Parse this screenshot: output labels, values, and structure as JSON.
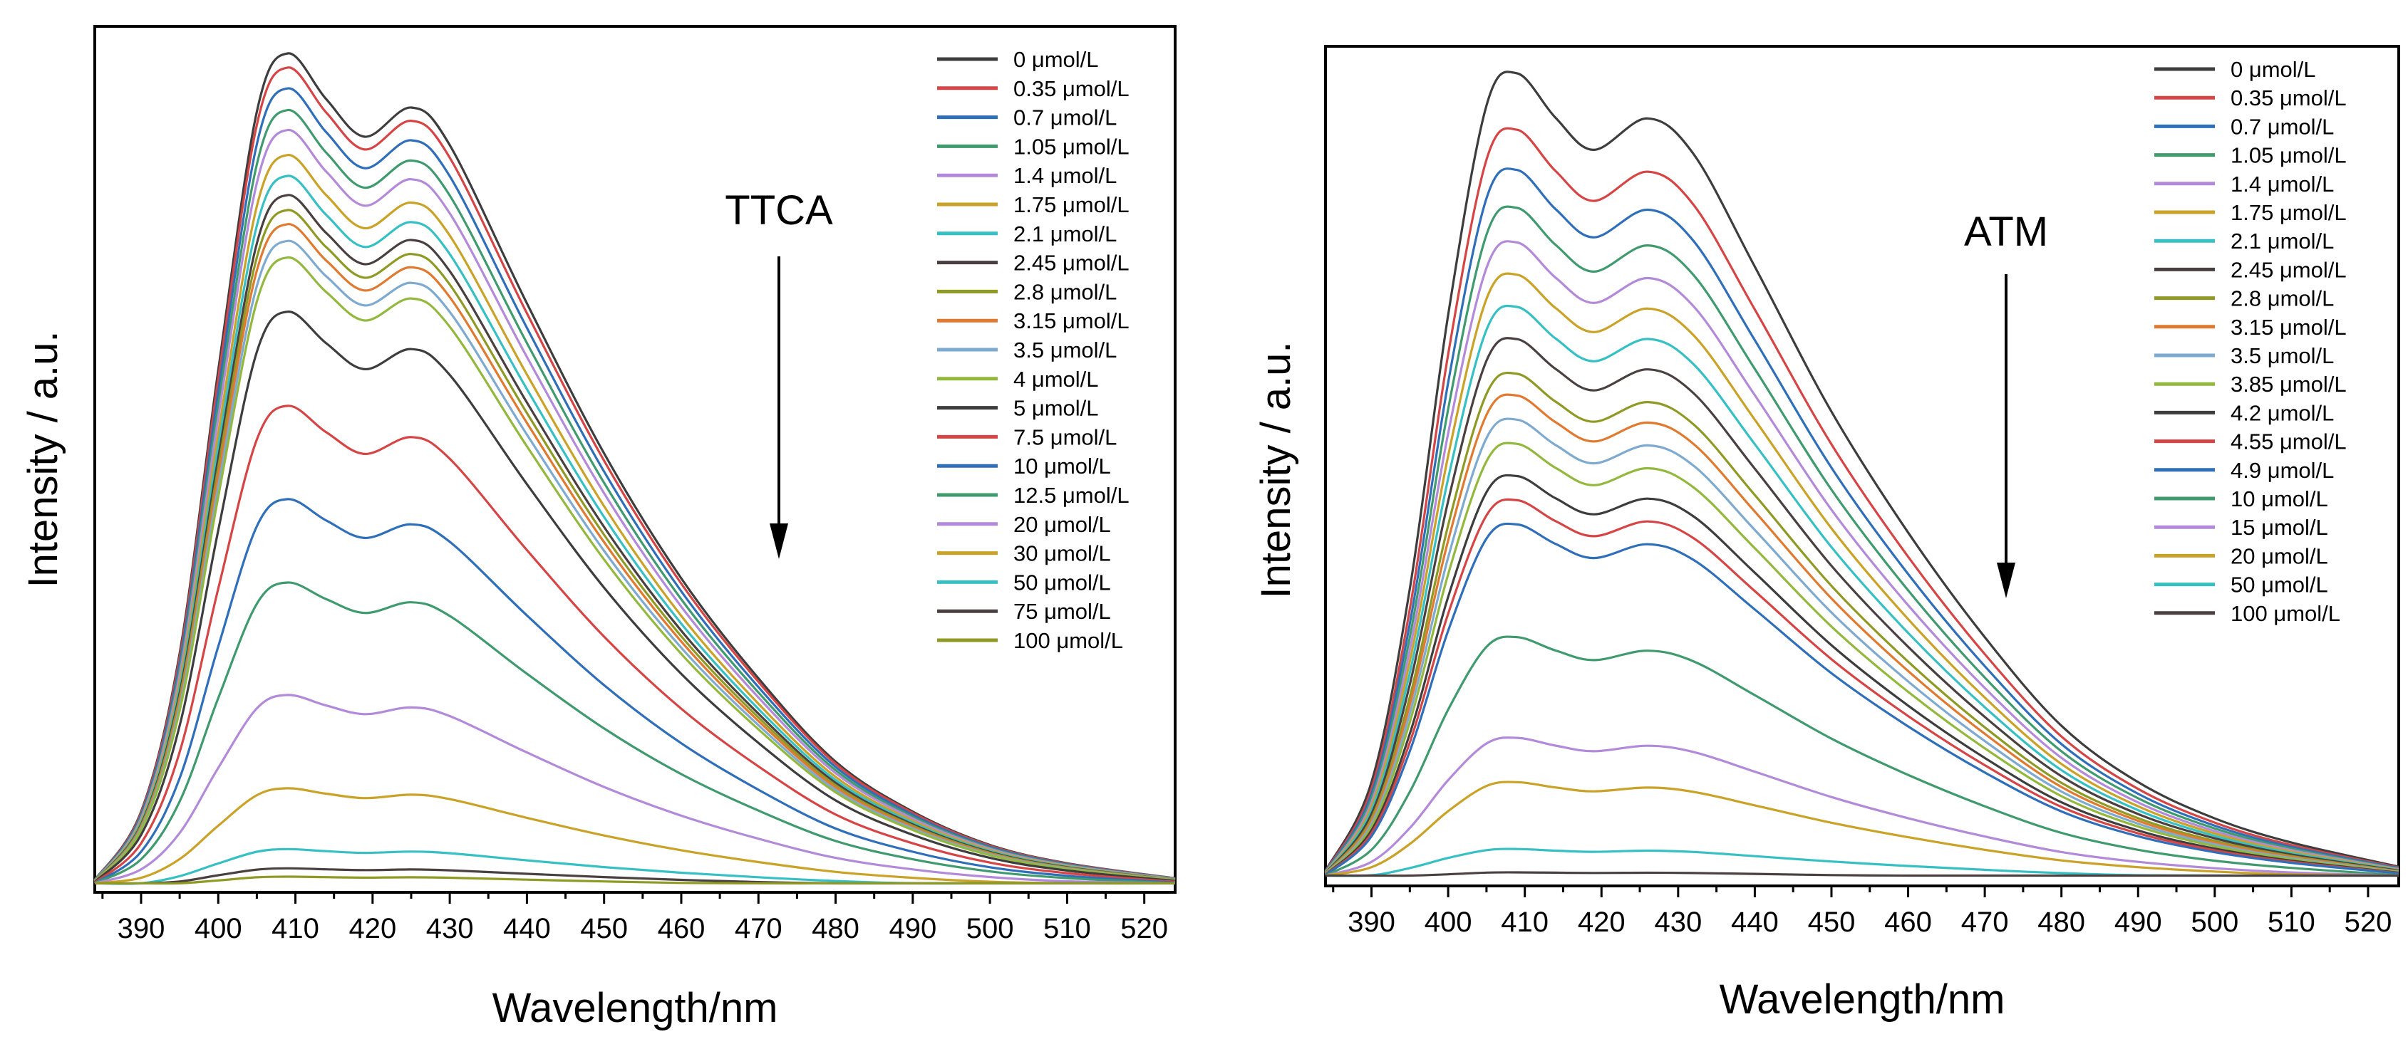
{
  "palette": [
    "#3d3d3d",
    "#d64545",
    "#2f6fba",
    "#3f9a6e",
    "#b38ad9",
    "#c9a227",
    "#37c0c4",
    "#4a4040",
    "#8f9a25",
    "#e07a30",
    "#7faad0",
    "#93b83e"
  ],
  "chart_data": [
    {
      "type": "line",
      "title": "",
      "xlabel": "Wavelength/nm",
      "ylabel": "Intensity / a.u.",
      "xlim": [
        384,
        524
      ],
      "xticks": [
        390,
        400,
        410,
        420,
        430,
        440,
        450,
        460,
        470,
        480,
        490,
        500,
        510,
        520
      ],
      "annotation": "TTCA",
      "legend_position": "top-right",
      "grid": false,
      "x": [
        384,
        390,
        395,
        400,
        405,
        409,
        414,
        419,
        425,
        430,
        440,
        450,
        460,
        470,
        480,
        490,
        500,
        510,
        524
      ],
      "shape": [
        0.008,
        0.09,
        0.28,
        0.62,
        0.93,
        1.0,
        0.945,
        0.9,
        0.935,
        0.89,
        0.7,
        0.52,
        0.37,
        0.25,
        0.15,
        0.09,
        0.05,
        0.028,
        0.01
      ],
      "series": [
        {
          "name": "0 μmol/L",
          "peak": 1.0,
          "color": "#3d3d3d"
        },
        {
          "name": "0.35 μmol/L",
          "peak": 0.983,
          "color": "#d64545"
        },
        {
          "name": "0.7 μmol/L",
          "peak": 0.958,
          "color": "#2f6fba"
        },
        {
          "name": "1.05 μmol/L",
          "peak": 0.932,
          "color": "#3f9a6e"
        },
        {
          "name": "1.4 μmol/L",
          "peak": 0.908,
          "color": "#b38ad9"
        },
        {
          "name": "1.75 μmol/L",
          "peak": 0.878,
          "color": "#c9a227"
        },
        {
          "name": "2.1 μmol/L",
          "peak": 0.853,
          "color": "#37c0c4"
        },
        {
          "name": "2.45 μmol/L",
          "peak": 0.83,
          "color": "#4a4040"
        },
        {
          "name": "2.8 μmol/L",
          "peak": 0.812,
          "color": "#8f9a25"
        },
        {
          "name": "3.15 μmol/L",
          "peak": 0.795,
          "color": "#e07a30"
        },
        {
          "name": "3.5 μmol/L",
          "peak": 0.775,
          "color": "#7faad0"
        },
        {
          "name": "4 μmol/L",
          "peak": 0.755,
          "color": "#93b83e"
        },
        {
          "name": "5 μmol/L",
          "peak": 0.69,
          "color": "#3d3d3d"
        },
        {
          "name": "7.5 μmol/L",
          "peak": 0.577,
          "color": "#d64545"
        },
        {
          "name": "10 μmol/L",
          "peak": 0.465,
          "color": "#2f6fba"
        },
        {
          "name": "12.5 μmol/L",
          "peak": 0.365,
          "color": "#3f9a6e"
        },
        {
          "name": "20 μmol/L",
          "peak": 0.23,
          "color": "#b38ad9"
        },
        {
          "name": "30 μmol/L",
          "peak": 0.118,
          "color": "#c9a227"
        },
        {
          "name": "50 μmol/L",
          "peak": 0.045,
          "color": "#37c0c4"
        },
        {
          "name": "75 μmol/L",
          "peak": 0.022,
          "color": "#4a4040"
        },
        {
          "name": "100 μmol/L",
          "peak": 0.012,
          "color": "#8f9a25"
        }
      ]
    },
    {
      "type": "line",
      "title": "",
      "xlabel": "Wavelength/nm",
      "ylabel": "Intensity / a.u.",
      "xlim": [
        384,
        524
      ],
      "xticks": [
        390,
        400,
        410,
        420,
        430,
        440,
        450,
        460,
        470,
        480,
        490,
        500,
        510,
        520
      ],
      "annotation": "ATM",
      "legend_position": "top-right",
      "grid": false,
      "x": [
        384,
        390,
        395,
        400,
        405,
        409,
        414,
        419,
        426,
        432,
        440,
        450,
        460,
        470,
        480,
        490,
        500,
        510,
        524
      ],
      "shape": [
        0.01,
        0.12,
        0.36,
        0.7,
        0.96,
        1.0,
        0.945,
        0.905,
        0.944,
        0.9,
        0.76,
        0.58,
        0.43,
        0.3,
        0.19,
        0.12,
        0.075,
        0.045,
        0.015
      ],
      "series": [
        {
          "name": "0 μmol/L",
          "peak": 1.0,
          "color": "#3d3d3d"
        },
        {
          "name": "0.35 μmol/L",
          "peak": 0.93,
          "color": "#d64545"
        },
        {
          "name": "0.7 μmol/L",
          "peak": 0.88,
          "color": "#2f6fba"
        },
        {
          "name": "1.05 μmol/L",
          "peak": 0.833,
          "color": "#3f9a6e"
        },
        {
          "name": "1.4 μmol/L",
          "peak": 0.79,
          "color": "#b38ad9"
        },
        {
          "name": "1.75 μmol/L",
          "peak": 0.75,
          "color": "#c9a227"
        },
        {
          "name": "2.1 μmol/L",
          "peak": 0.71,
          "color": "#37c0c4"
        },
        {
          "name": "2.45 μmol/L",
          "peak": 0.67,
          "color": "#4a4040"
        },
        {
          "name": "2.8 μmol/L",
          "peak": 0.627,
          "color": "#8f9a25"
        },
        {
          "name": "3.15 μmol/L",
          "peak": 0.6,
          "color": "#e07a30"
        },
        {
          "name": "3.5 μmol/L",
          "peak": 0.57,
          "color": "#7faad0"
        },
        {
          "name": "3.85 μmol/L",
          "peak": 0.54,
          "color": "#93b83e"
        },
        {
          "name": "4.2 μmol/L",
          "peak": 0.5,
          "color": "#3d3d3d"
        },
        {
          "name": "4.55 μmol/L",
          "peak": 0.47,
          "color": "#d64545"
        },
        {
          "name": "4.9 μmol/L",
          "peak": 0.44,
          "color": "#2f6fba"
        },
        {
          "name": "10 μmol/L",
          "peak": 0.3,
          "color": "#3f9a6e"
        },
        {
          "name": "15 μmol/L",
          "peak": 0.175,
          "color": "#b38ad9"
        },
        {
          "name": "20 μmol/L",
          "peak": 0.12,
          "color": "#c9a227"
        },
        {
          "name": "50 μmol/L",
          "peak": 0.037,
          "color": "#37c0c4"
        },
        {
          "name": "100 μmol/L",
          "peak": 0.008,
          "color": "#4a4040"
        }
      ]
    }
  ]
}
